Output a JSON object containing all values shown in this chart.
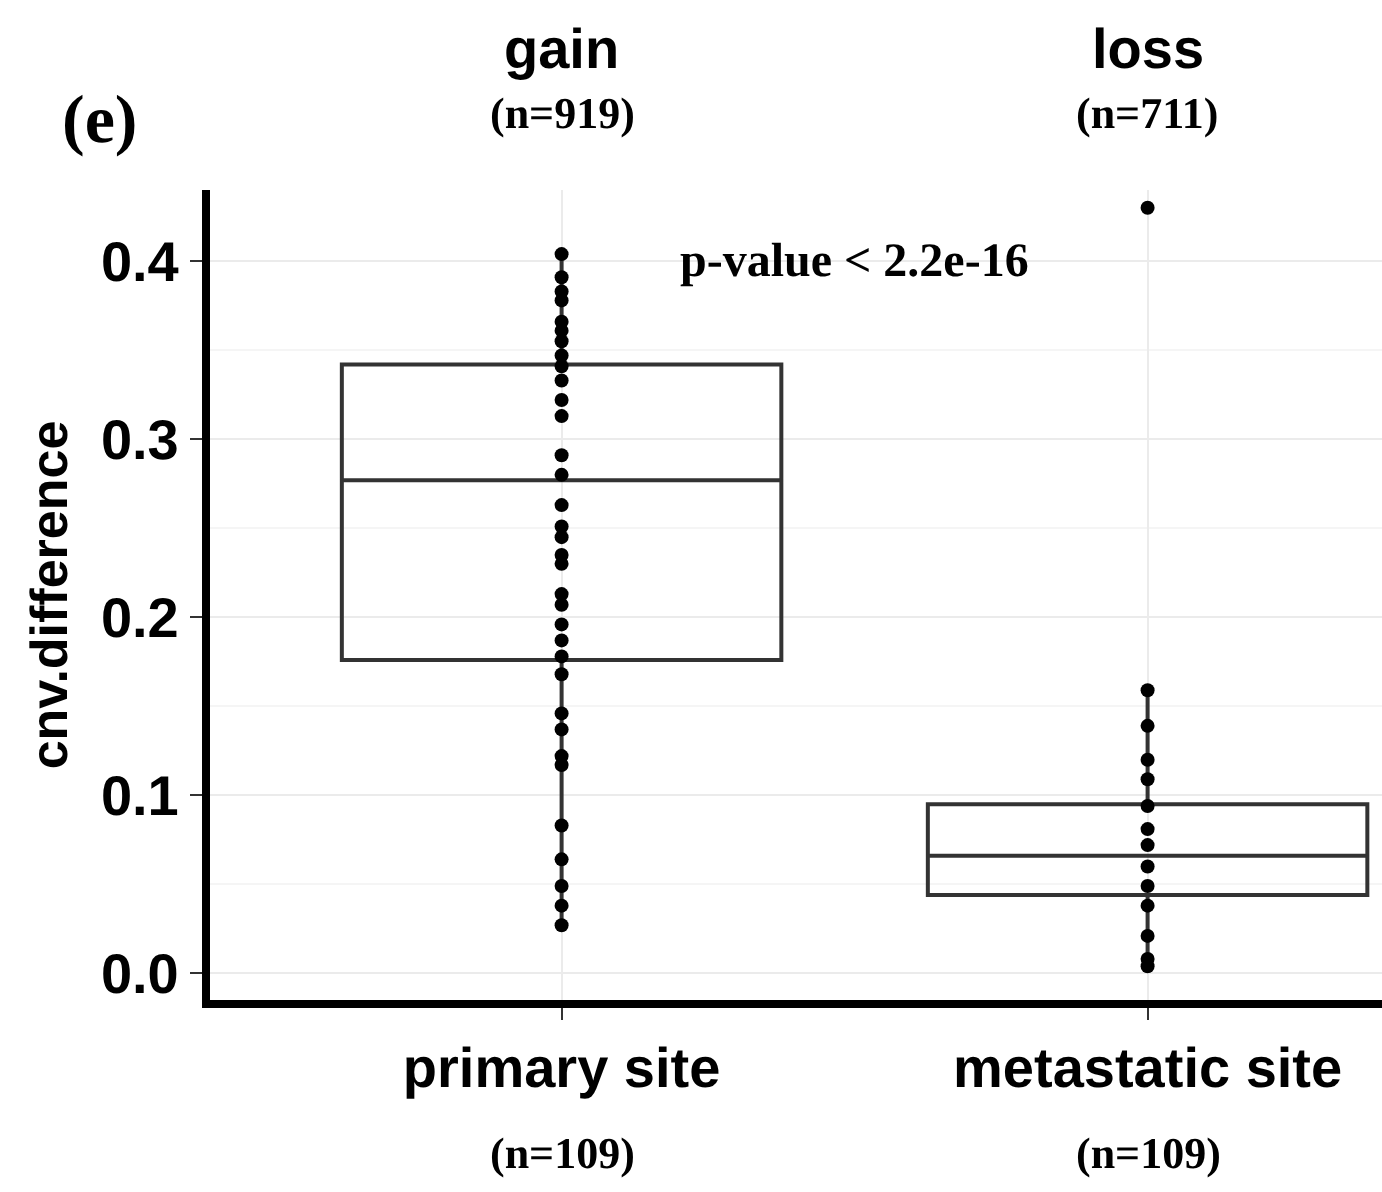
{
  "chart_data": {
    "type": "box",
    "ylabel": "cnv.difference",
    "categories": [
      "primary site",
      "metastatic site"
    ],
    "boxes": [
      {
        "low": 0.026,
        "q1": 0.176,
        "median": 0.277,
        "q3": 0.342,
        "high": 0.404
      },
      {
        "low": 0.004,
        "q1": 0.044,
        "median": 0.066,
        "q3": 0.095,
        "high": 0.159,
        "outliers": [
          0.43
        ]
      }
    ],
    "series": [
      {
        "type": "scatter",
        "color": "#000000",
        "x": [
          "primary site",
          "primary site",
          "primary site",
          "primary site",
          "primary site",
          "primary site",
          "primary site",
          "primary site",
          "primary site",
          "primary site",
          "primary site",
          "primary site",
          "primary site",
          "primary site",
          "primary site",
          "primary site",
          "primary site",
          "primary site",
          "primary site",
          "primary site",
          "primary site",
          "primary site",
          "primary site",
          "primary site",
          "primary site",
          "primary site",
          "primary site",
          "primary site",
          "primary site",
          "primary site",
          "primary site",
          "primary site",
          "primary site",
          "primary site"
        ],
        "values": [
          0.404,
          0.391,
          0.383,
          0.378,
          0.366,
          0.361,
          0.355,
          0.347,
          0.341,
          0.333,
          0.322,
          0.313,
          0.291,
          0.28,
          0.263,
          0.251,
          0.245,
          0.235,
          0.23,
          0.213,
          0.207,
          0.196,
          0.187,
          0.178,
          0.168,
          0.146,
          0.137,
          0.122,
          0.117,
          0.083,
          0.064,
          0.049,
          0.038,
          0.027
        ]
      },
      {
        "type": "scatter",
        "color": "#000000",
        "x": [
          "metastatic site",
          "metastatic site",
          "metastatic site",
          "metastatic site",
          "metastatic site",
          "metastatic site",
          "metastatic site",
          "metastatic site",
          "metastatic site",
          "metastatic site",
          "metastatic site",
          "metastatic site",
          "metastatic site"
        ],
        "values": [
          0.159,
          0.139,
          0.12,
          0.109,
          0.094,
          0.081,
          0.072,
          0.06,
          0.049,
          0.038,
          0.021,
          0.008,
          0.004
        ]
      }
    ],
    "ylim": [
      -0.015,
      0.44
    ],
    "yticks": [
      {
        "value": 0,
        "label": "0.0"
      },
      0.1,
      0.2,
      0.3,
      0.4
    ],
    "grid": true,
    "marker": "circle",
    "annotations": [
      "(e)",
      "gain",
      "(n=919)",
      "loss",
      "(n=711)",
      "p-value < 2.2e-16",
      "(n=109)",
      "(n=109)"
    ]
  }
}
